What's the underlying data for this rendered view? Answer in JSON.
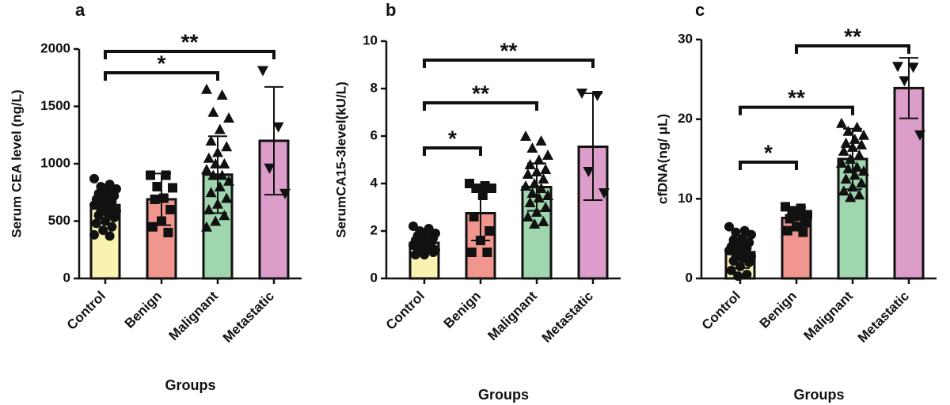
{
  "chart_data": [
    {
      "type": "bar",
      "panel_label": "a",
      "ylabel": "Serum CEA level (ng/L)",
      "xlabel": "Groups",
      "categories": [
        "Control",
        "Benign",
        "Malignant",
        "Metastatic"
      ],
      "values": [
        640,
        690,
        905,
        1200
      ],
      "errors": [
        110,
        225,
        335,
        470
      ],
      "colors": [
        "#f8f3b0",
        "#f0968f",
        "#9fd6ad",
        "#dc9dcb"
      ],
      "markers": [
        "circle",
        "square",
        "triangle-up",
        "triangle-down"
      ],
      "points": [
        [
          870,
          820,
          800,
          780,
          760,
          740,
          720,
          700,
          690,
          670,
          650,
          640,
          620,
          600,
          590,
          570,
          550,
          530,
          500,
          480,
          450,
          420,
          380,
          370
        ],
        [
          900,
          900,
          800,
          790,
          700,
          690,
          600,
          500,
          450,
          400
        ],
        [
          1650,
          1600,
          1450,
          1400,
          1300,
          1200,
          1150,
          1100,
          1050,
          1000,
          1000,
          950,
          900,
          900,
          850,
          800,
          750,
          700,
          650,
          600,
          550,
          500,
          450
        ],
        [
          1810,
          1320,
          960,
          740
        ]
      ],
      "ylim": [
        0,
        2000
      ],
      "yticks": [
        0,
        500,
        1000,
        1500,
        2000
      ],
      "brackets": [
        {
          "from": "Control",
          "to": "Malignant",
          "y": 1793,
          "label": "*"
        },
        {
          "from": "Control",
          "to": "Metastatic",
          "y": 1979,
          "label": "**"
        }
      ]
    },
    {
      "type": "bar",
      "panel_label": "b",
      "ylabel": "SerumCA15-3level(kU/L)",
      "xlabel": "Groups",
      "categories": [
        "Control",
        "Benign",
        "Malignant",
        "Metastatic"
      ],
      "values": [
        1.5,
        2.75,
        3.85,
        5.55
      ],
      "errors": [
        0.3,
        1.15,
        1.0,
        2.25
      ],
      "colors": [
        "#f8f3b0",
        "#f0968f",
        "#9fd6ad",
        "#dc9dcb"
      ],
      "markers": [
        "circle",
        "square",
        "triangle-up",
        "triangle-down"
      ],
      "points": [
        [
          2.2,
          2.1,
          2.0,
          1.9,
          1.9,
          1.8,
          1.7,
          1.6,
          1.6,
          1.5,
          1.5,
          1.4,
          1.3,
          1.3,
          1.2,
          1.2,
          1.1,
          1.1,
          1.0,
          1.0
        ],
        [
          4.0,
          3.9,
          3.8,
          3.8,
          3.5,
          2.6,
          2.0,
          1.6,
          1.1,
          1.1
        ],
        [
          6.0,
          5.8,
          5.5,
          5.2,
          5.0,
          4.8,
          4.6,
          4.5,
          4.4,
          4.2,
          4.0,
          3.9,
          3.8,
          3.6,
          3.5,
          3.4,
          3.2,
          3.0,
          2.8,
          2.6,
          2.4,
          2.3
        ],
        [
          7.8,
          7.7,
          4.5,
          3.6
        ]
      ],
      "ylim": [
        0,
        10
      ],
      "yticks": [
        0,
        2,
        4,
        6,
        8,
        10
      ],
      "brackets": [
        {
          "from": "Control",
          "to": "Benign",
          "y": 5.5,
          "label": "*"
        },
        {
          "from": "Control",
          "to": "Malignant",
          "y": 7.4,
          "label": "**"
        },
        {
          "from": "Control",
          "to": "Metastatic",
          "y": 9.2,
          "label": "**"
        }
      ]
    },
    {
      "type": "bar",
      "panel_label": "c",
      "ylabel": "cfDNA(ng/ μL)",
      "xlabel": "Groups",
      "categories": [
        "Control",
        "Benign",
        "Malignant",
        "Metastatic"
      ],
      "values": [
        3.3,
        7.6,
        15.0,
        23.9
      ],
      "errors": [
        2.0,
        1.3,
        3.8,
        3.8
      ],
      "colors": [
        "#f8f3b0",
        "#f0968f",
        "#9fd6ad",
        "#dc9dcb"
      ],
      "markers": [
        "circle",
        "square",
        "triangle-up",
        "triangle-down"
      ],
      "points": [
        [
          6.5,
          6.0,
          5.8,
          5.5,
          5.0,
          4.8,
          4.5,
          4.2,
          4.0,
          3.8,
          3.6,
          3.5,
          3.2,
          3.0,
          2.8,
          2.5,
          2.2,
          2.0,
          1.5,
          1.0,
          0.5,
          0.3
        ],
        [
          9.0,
          8.8,
          8.5,
          8.0,
          7.8,
          7.5,
          7.0,
          6.5,
          6.0,
          5.8
        ],
        [
          19.5,
          19.0,
          18.5,
          18.0,
          17.5,
          17.0,
          16.8,
          16.5,
          16.0,
          15.5,
          15.0,
          14.5,
          14.0,
          13.8,
          13.5,
          13.0,
          12.5,
          12.0,
          11.5,
          11.0,
          10.5,
          10.2
        ],
        [
          26.6,
          26.5,
          24.8,
          18.0
        ]
      ],
      "ylim": [
        0,
        30
      ],
      "yticks": [
        0,
        10,
        20,
        30
      ],
      "brackets": [
        {
          "from": "Control",
          "to": "Benign",
          "y": 14.6,
          "label": "*"
        },
        {
          "from": "Control",
          "to": "Malignant",
          "y": 21.5,
          "label": "**"
        },
        {
          "from": "Benign",
          "to": "Metastatic",
          "y": 29.2,
          "label": "**"
        }
      ]
    }
  ]
}
